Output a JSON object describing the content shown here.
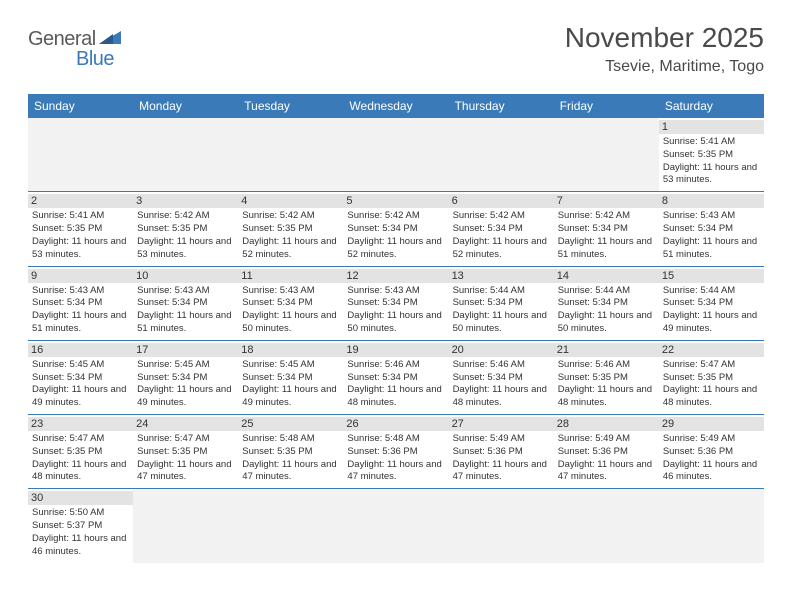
{
  "logo": {
    "part1": "General",
    "part2": "Blue"
  },
  "title": "November 2025",
  "location": "Tsevie, Maritime, Togo",
  "colors": {
    "header_bg": "#3a7ab8",
    "daynum_bg": "#e3e3e3",
    "empty_bg": "#f2f2f2",
    "text": "#333333",
    "title_text": "#4a4a4a",
    "logo_gray": "#5a5a5a",
    "logo_blue": "#3a7ab8"
  },
  "day_names": [
    "Sunday",
    "Monday",
    "Tuesday",
    "Wednesday",
    "Thursday",
    "Friday",
    "Saturday"
  ],
  "labels": {
    "sunrise": "Sunrise:",
    "sunset": "Sunset:",
    "daylight": "Daylight:"
  },
  "weeks": [
    [
      null,
      null,
      null,
      null,
      null,
      null,
      {
        "n": "1",
        "sr": "5:41 AM",
        "ss": "5:35 PM",
        "dl": "11 hours and 53 minutes."
      }
    ],
    [
      {
        "n": "2",
        "sr": "5:41 AM",
        "ss": "5:35 PM",
        "dl": "11 hours and 53 minutes."
      },
      {
        "n": "3",
        "sr": "5:42 AM",
        "ss": "5:35 PM",
        "dl": "11 hours and 53 minutes."
      },
      {
        "n": "4",
        "sr": "5:42 AM",
        "ss": "5:35 PM",
        "dl": "11 hours and 52 minutes."
      },
      {
        "n": "5",
        "sr": "5:42 AM",
        "ss": "5:34 PM",
        "dl": "11 hours and 52 minutes."
      },
      {
        "n": "6",
        "sr": "5:42 AM",
        "ss": "5:34 PM",
        "dl": "11 hours and 52 minutes."
      },
      {
        "n": "7",
        "sr": "5:42 AM",
        "ss": "5:34 PM",
        "dl": "11 hours and 51 minutes."
      },
      {
        "n": "8",
        "sr": "5:43 AM",
        "ss": "5:34 PM",
        "dl": "11 hours and 51 minutes."
      }
    ],
    [
      {
        "n": "9",
        "sr": "5:43 AM",
        "ss": "5:34 PM",
        "dl": "11 hours and 51 minutes."
      },
      {
        "n": "10",
        "sr": "5:43 AM",
        "ss": "5:34 PM",
        "dl": "11 hours and 51 minutes."
      },
      {
        "n": "11",
        "sr": "5:43 AM",
        "ss": "5:34 PM",
        "dl": "11 hours and 50 minutes."
      },
      {
        "n": "12",
        "sr": "5:43 AM",
        "ss": "5:34 PM",
        "dl": "11 hours and 50 minutes."
      },
      {
        "n": "13",
        "sr": "5:44 AM",
        "ss": "5:34 PM",
        "dl": "11 hours and 50 minutes."
      },
      {
        "n": "14",
        "sr": "5:44 AM",
        "ss": "5:34 PM",
        "dl": "11 hours and 50 minutes."
      },
      {
        "n": "15",
        "sr": "5:44 AM",
        "ss": "5:34 PM",
        "dl": "11 hours and 49 minutes."
      }
    ],
    [
      {
        "n": "16",
        "sr": "5:45 AM",
        "ss": "5:34 PM",
        "dl": "11 hours and 49 minutes."
      },
      {
        "n": "17",
        "sr": "5:45 AM",
        "ss": "5:34 PM",
        "dl": "11 hours and 49 minutes."
      },
      {
        "n": "18",
        "sr": "5:45 AM",
        "ss": "5:34 PM",
        "dl": "11 hours and 49 minutes."
      },
      {
        "n": "19",
        "sr": "5:46 AM",
        "ss": "5:34 PM",
        "dl": "11 hours and 48 minutes."
      },
      {
        "n": "20",
        "sr": "5:46 AM",
        "ss": "5:34 PM",
        "dl": "11 hours and 48 minutes."
      },
      {
        "n": "21",
        "sr": "5:46 AM",
        "ss": "5:35 PM",
        "dl": "11 hours and 48 minutes."
      },
      {
        "n": "22",
        "sr": "5:47 AM",
        "ss": "5:35 PM",
        "dl": "11 hours and 48 minutes."
      }
    ],
    [
      {
        "n": "23",
        "sr": "5:47 AM",
        "ss": "5:35 PM",
        "dl": "11 hours and 48 minutes."
      },
      {
        "n": "24",
        "sr": "5:47 AM",
        "ss": "5:35 PM",
        "dl": "11 hours and 47 minutes."
      },
      {
        "n": "25",
        "sr": "5:48 AM",
        "ss": "5:35 PM",
        "dl": "11 hours and 47 minutes."
      },
      {
        "n": "26",
        "sr": "5:48 AM",
        "ss": "5:36 PM",
        "dl": "11 hours and 47 minutes."
      },
      {
        "n": "27",
        "sr": "5:49 AM",
        "ss": "5:36 PM",
        "dl": "11 hours and 47 minutes."
      },
      {
        "n": "28",
        "sr": "5:49 AM",
        "ss": "5:36 PM",
        "dl": "11 hours and 47 minutes."
      },
      {
        "n": "29",
        "sr": "5:49 AM",
        "ss": "5:36 PM",
        "dl": "11 hours and 46 minutes."
      }
    ],
    [
      {
        "n": "30",
        "sr": "5:50 AM",
        "ss": "5:37 PM",
        "dl": "11 hours and 46 minutes."
      },
      null,
      null,
      null,
      null,
      null,
      null
    ]
  ]
}
